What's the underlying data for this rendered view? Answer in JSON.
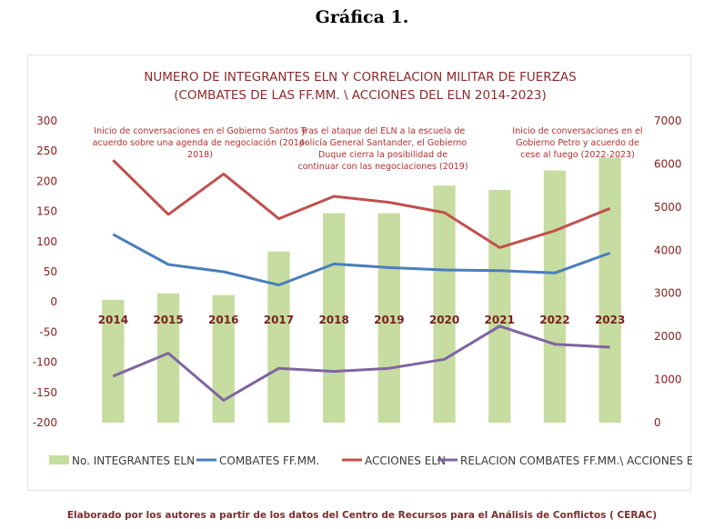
{
  "heading": "Gráfica 1.",
  "source": "Elaborado por los autores a partir de los datos del Centro de Recursos para el Análisis de Conflictos ( CERAC)",
  "colors": {
    "bars": "#c6dca0",
    "combates": "#4a7ebb",
    "acciones": "#c0504d",
    "relacion": "#8064a2",
    "tick_text": "#8b2020",
    "year_text": "#7a1f1f",
    "annotation_text": "#b03030"
  },
  "chart_data": {
    "type": "bar+line",
    "title": [
      "NUMERO DE INTEGRANTES ELN Y CORRELACION MILITAR DE FUERZAS",
      "(COMBATES DE LAS FF.MM. \\ ACCIONES DEL ELN 2014-2023)"
    ],
    "categories": [
      "2014",
      "2015",
      "2016",
      "2017",
      "2018",
      "2019",
      "2020",
      "2021",
      "2022",
      "2023"
    ],
    "y_left": {
      "range": [
        -200,
        300
      ],
      "ticks": [
        "-200",
        "-150",
        "-100",
        "-50",
        "0",
        "50",
        "100",
        "150",
        "200",
        "250",
        "300"
      ]
    },
    "y_right": {
      "range": [
        0,
        7000
      ],
      "ticks": [
        "0",
        "1000",
        "2000",
        "3000",
        "4000",
        "5000",
        "6000",
        "7000"
      ]
    },
    "grid": false,
    "legend_position": "bottom",
    "series": [
      {
        "name": "No. INTEGRANTES ELN",
        "type": "bar",
        "axis": "right",
        "color": "#c6dca0",
        "values": [
          2850,
          3000,
          2960,
          3970,
          4860,
          4860,
          5500,
          5400,
          5850,
          6150
        ]
      },
      {
        "name": "COMBATES FF.MM.",
        "type": "line",
        "axis": "left",
        "color": "#4a7ebb",
        "values": [
          112,
          62,
          50,
          28,
          63,
          57,
          53,
          52,
          48,
          81
        ]
      },
      {
        "name": "ACCIONES ELN",
        "type": "line",
        "axis": "left",
        "color": "#c0504d",
        "values": [
          235,
          145,
          212,
          138,
          175,
          165,
          148,
          90,
          118,
          155
        ]
      },
      {
        "name": "RELACION COMBATES FF.MM.\\ ACCIONES ELN",
        "type": "line",
        "axis": "left",
        "color": "#8064a2",
        "values": [
          -123,
          -85,
          -163,
          -110,
          -115,
          -110,
          -95,
          -40,
          -70,
          -75
        ]
      }
    ],
    "annotations": [
      {
        "lines": [
          "Inicio de conversaciones en el Gobierno Santos  y",
          "acuerdo sobre una agenda de negociación (2014-",
          "2018)"
        ]
      },
      {
        "lines": [
          "Tras el ataque del ELN a la escuela de",
          "policía General Santander, el Gobierno",
          "Duque cierra la posibilidad de",
          "continuar con las negociaciones (2019)"
        ]
      },
      {
        "lines": [
          "Inicio de conversaciones en el",
          "Gobierno Petro y acuerdo de",
          "cese al fuego (2022-2023)"
        ]
      }
    ]
  }
}
